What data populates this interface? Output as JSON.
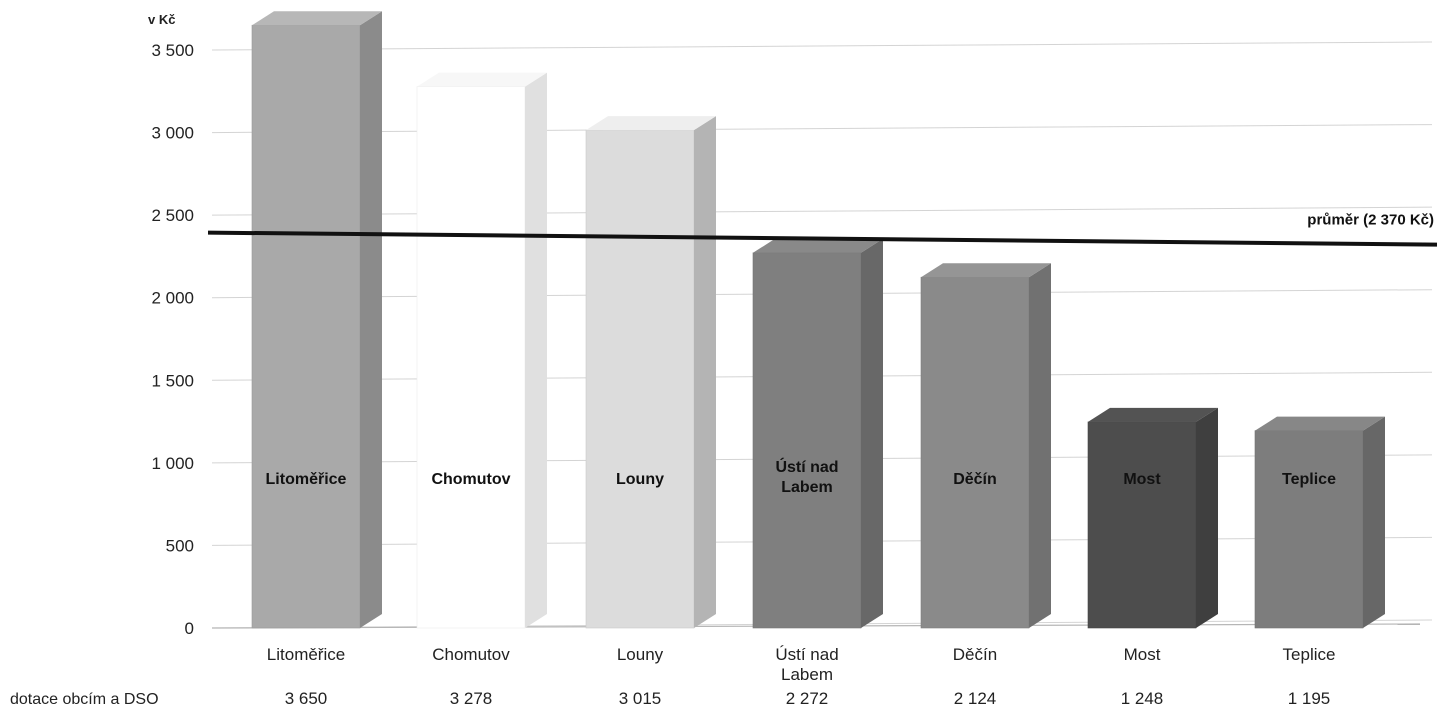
{
  "chart_data": {
    "type": "bar",
    "y_unit": "v Kč",
    "row_label": "dotace obcím a DSO",
    "categories": [
      "Litoměřice",
      "Chomutov",
      "Louny",
      "Ústí nad Labem",
      "Děčín",
      "Most",
      "Teplice"
    ],
    "category_lines": [
      [
        "Litoměřice"
      ],
      [
        "Chomutov"
      ],
      [
        "Louny"
      ],
      [
        "Ústí nad",
        "Labem"
      ],
      [
        "Děčín"
      ],
      [
        "Most"
      ],
      [
        "Teplice"
      ]
    ],
    "values": [
      3650,
      3278,
      3015,
      2272,
      2124,
      1248,
      1195
    ],
    "value_labels": [
      "3 650",
      "3 278",
      "3 015",
      "2 272",
      "2 124",
      "1 248",
      "1 195"
    ],
    "bar_colors": [
      "#a9a9a9",
      "#ffffff",
      "#dcdcdc",
      "#7f7f7f",
      "#8a8a8a",
      "#4d4d4d",
      "#7d7d7d"
    ],
    "y_ticks": [
      0,
      500,
      1000,
      1500,
      2000,
      2500,
      3000,
      3500
    ],
    "y_tick_labels": [
      "0",
      "500",
      "1 000",
      "1 500",
      "2 000",
      "2 500",
      "3 000",
      "3 500"
    ],
    "ylim": [
      0,
      3650
    ],
    "average": {
      "value": 2370,
      "label": "průměr (2 370 Kč)"
    },
    "grid": true
  }
}
